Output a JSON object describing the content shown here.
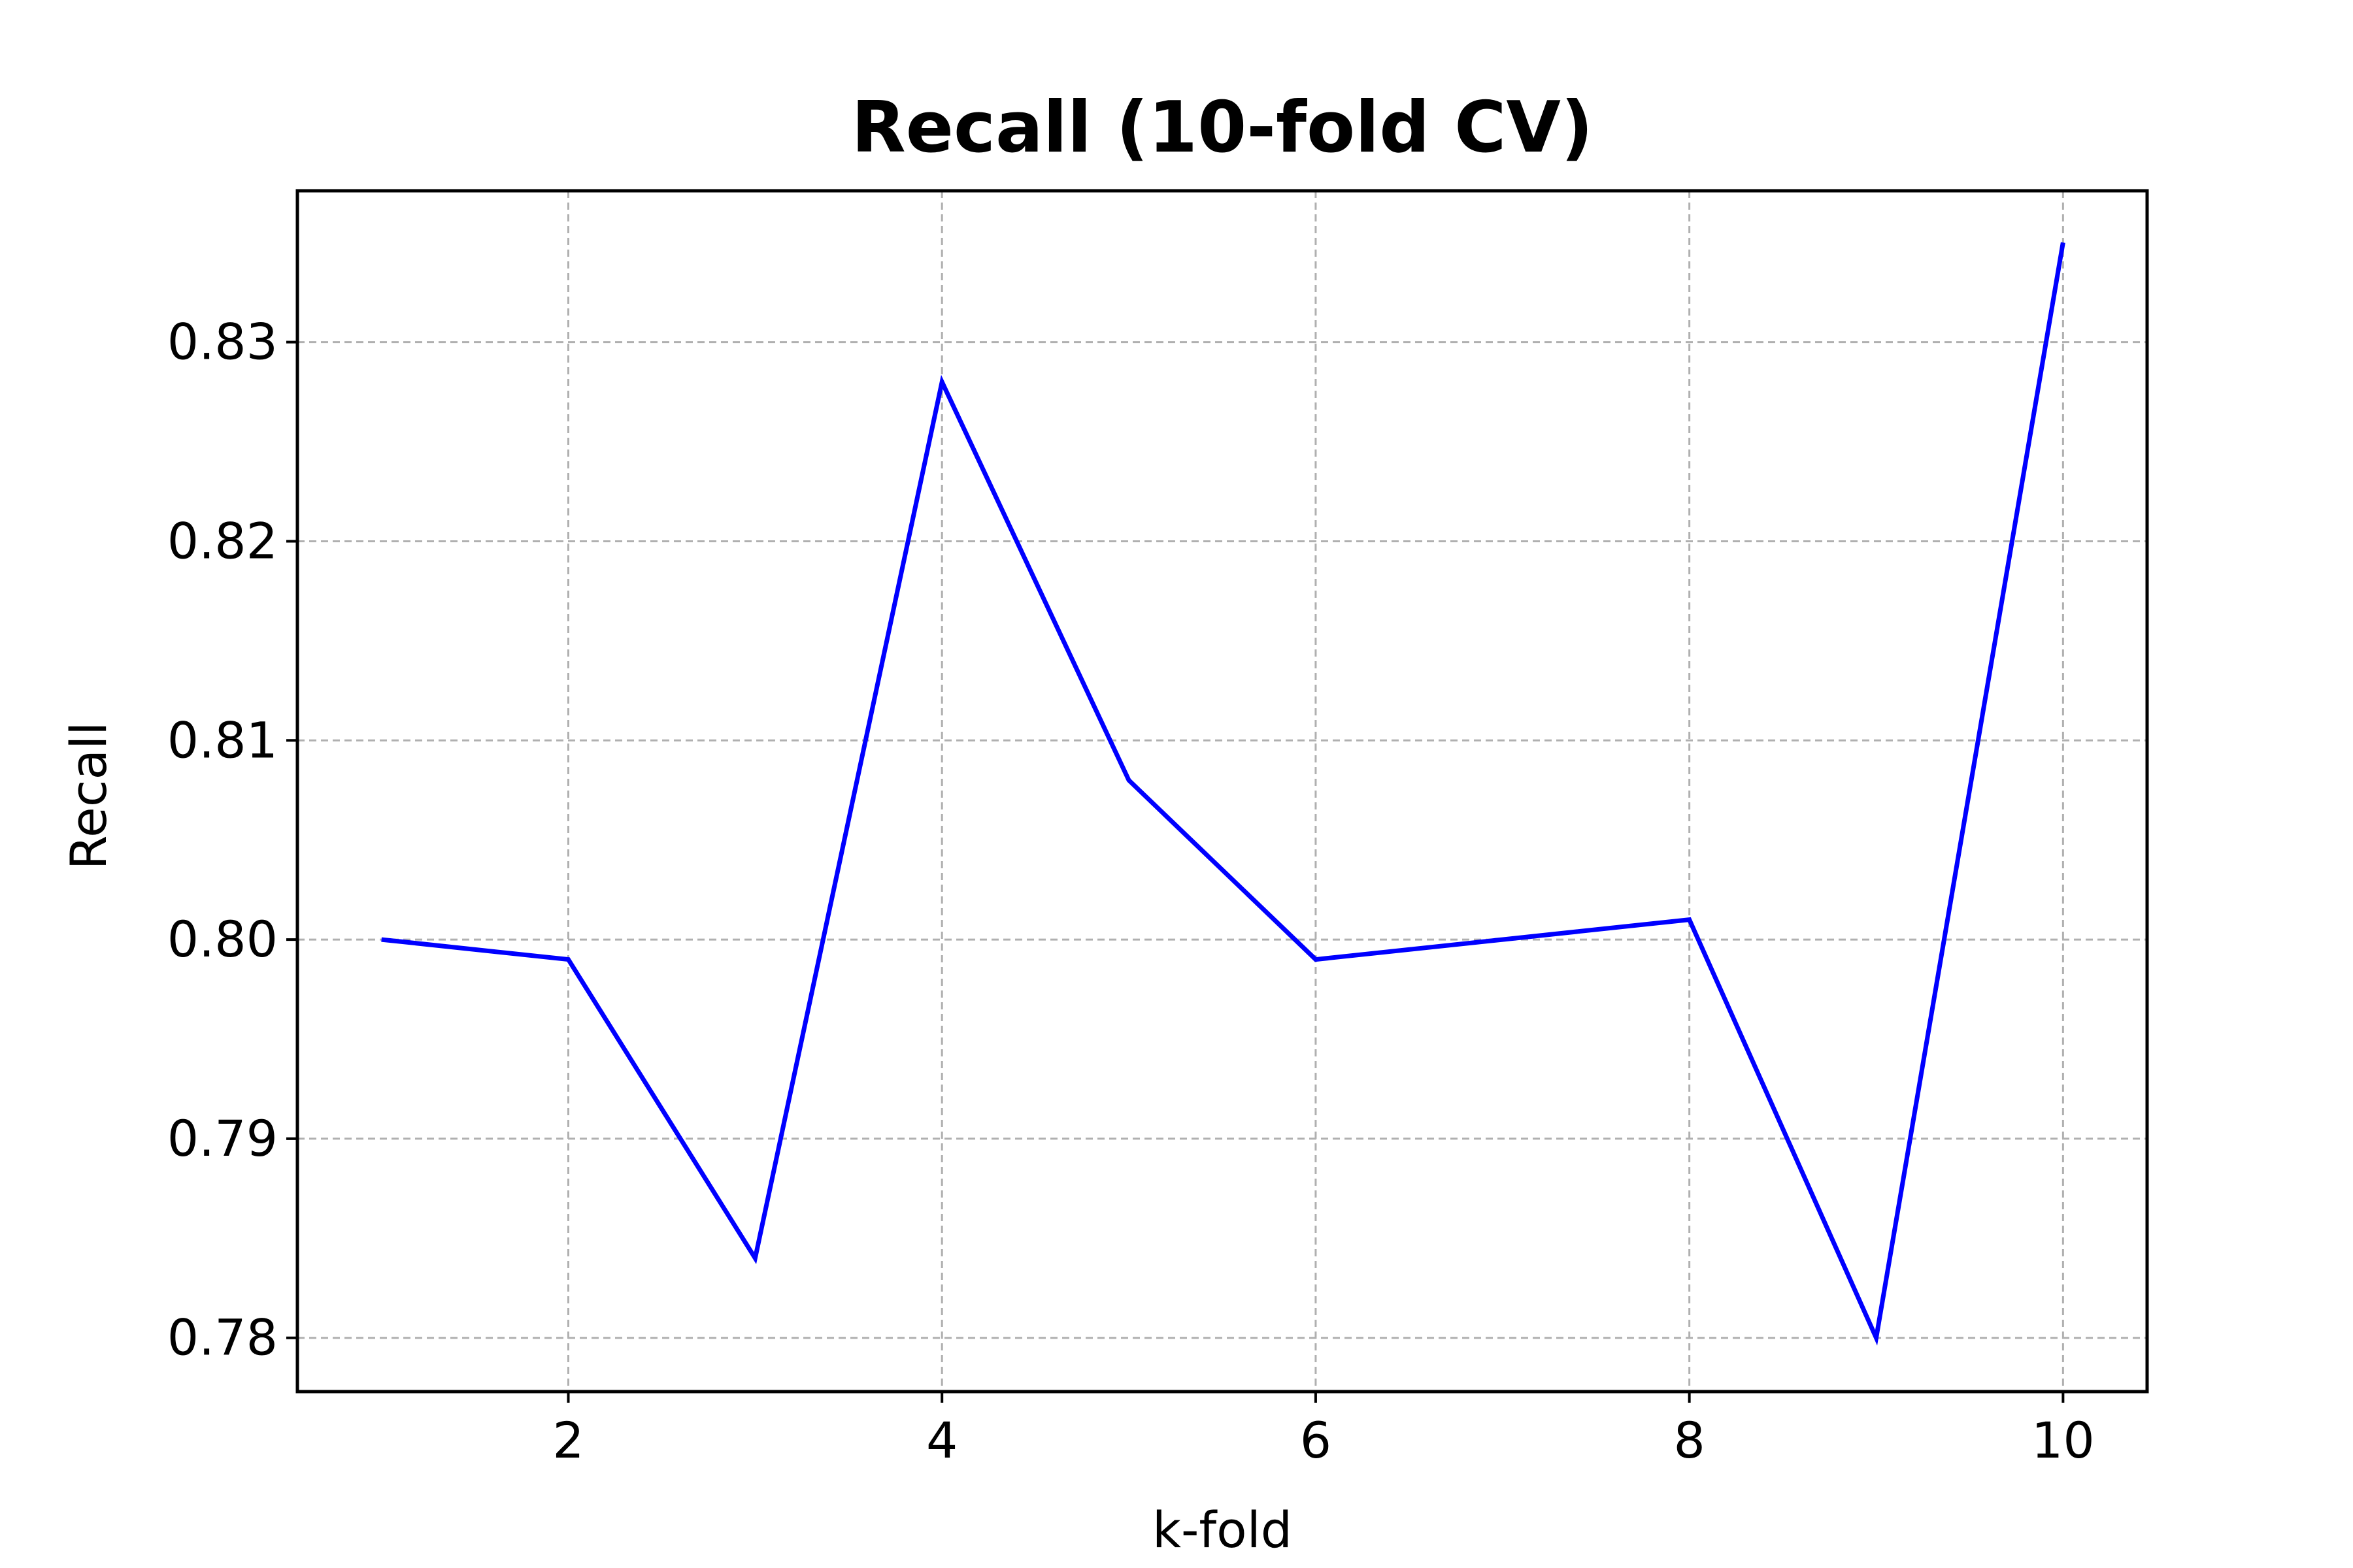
{
  "chart_data": {
    "type": "line",
    "title": "Recall (10-fold CV)",
    "xlabel": "k-fold",
    "ylabel": "Recall",
    "x": [
      1,
      2,
      3,
      4,
      5,
      6,
      7,
      8,
      9,
      10
    ],
    "series": [
      {
        "values": [
          0.8,
          0.799,
          0.784,
          0.828,
          0.808,
          0.799,
          0.8,
          0.801,
          0.78,
          0.835
        ],
        "color": "#0000ff"
      }
    ],
    "xlim": [
      0.55,
      10.45
    ],
    "ylim": [
      0.7773,
      0.8376
    ],
    "xticks": [
      2,
      4,
      6,
      8,
      10
    ],
    "xtick_labels": [
      "2",
      "4",
      "6",
      "8",
      "10"
    ],
    "yticks": [
      0.78,
      0.79,
      0.8,
      0.81,
      0.82,
      0.83
    ],
    "ytick_labels": [
      "0.78",
      "0.79",
      "0.80",
      "0.81",
      "0.82",
      "0.83"
    ],
    "grid": true,
    "grid_style": "dashed",
    "grid_color": "#b0b0b0",
    "legend": false
  }
}
